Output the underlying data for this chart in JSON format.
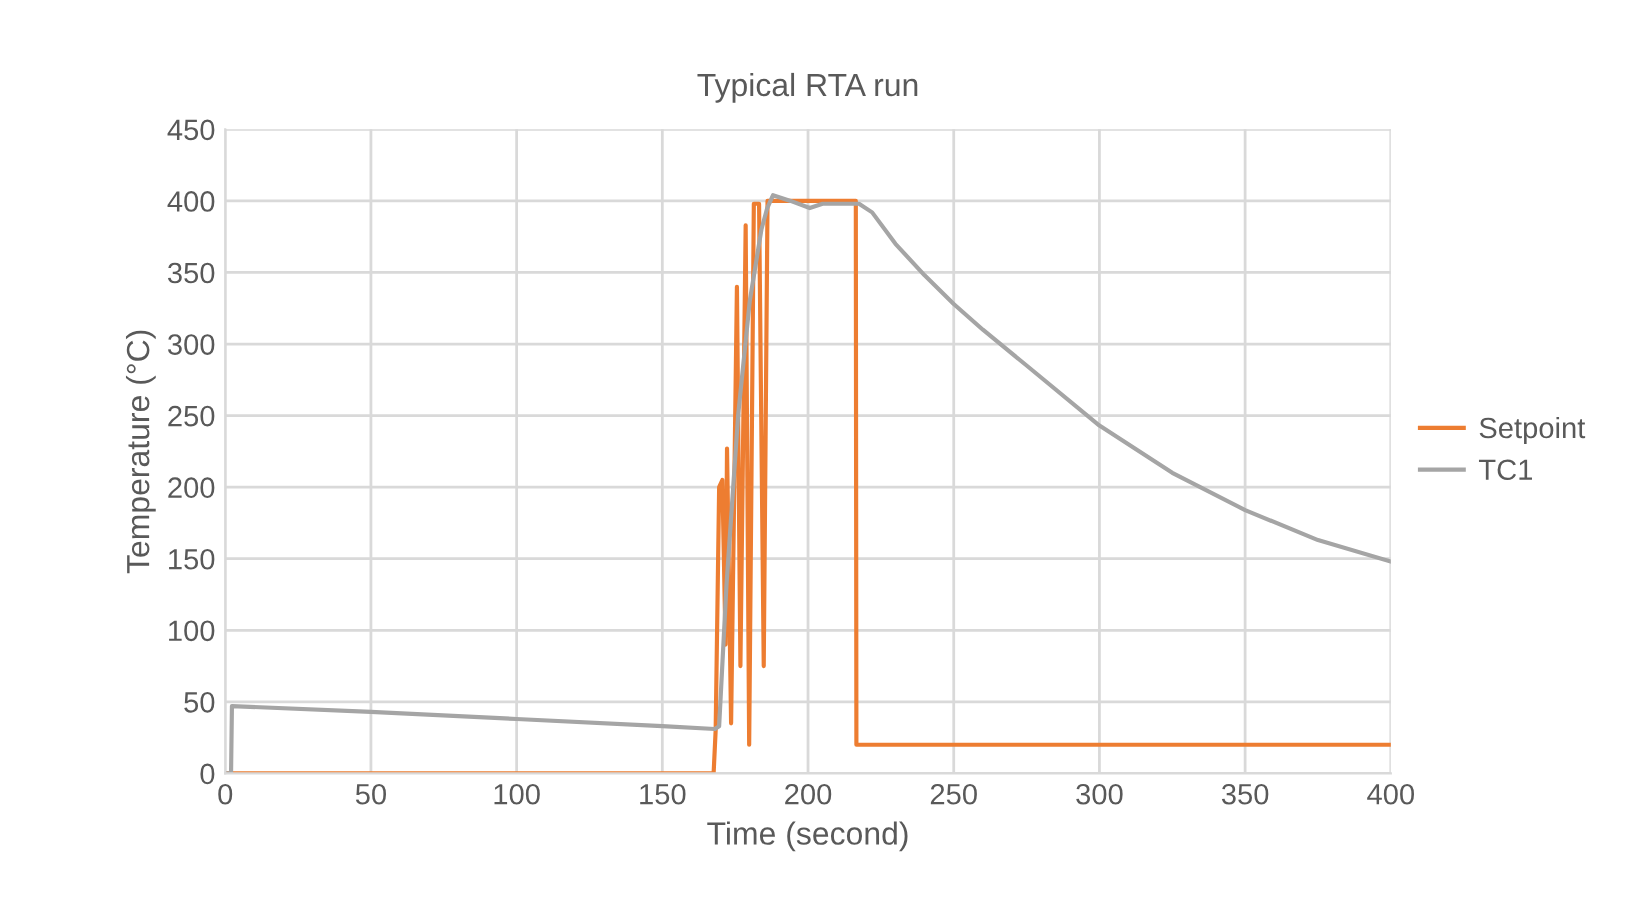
{
  "chart_data": {
    "type": "line",
    "title": "Typical RTA run",
    "xlabel": "Time (second)",
    "ylabel": "Temperature (°C)",
    "xlim": [
      0,
      400
    ],
    "xticks": [
      0,
      50,
      100,
      150,
      200,
      250,
      300,
      350,
      400
    ],
    "ylim": [
      0,
      450
    ],
    "yticks": [
      0,
      50,
      100,
      150,
      200,
      250,
      300,
      350,
      400,
      450
    ],
    "grid": true,
    "legend": "right",
    "marker": "none",
    "line_style": "solid",
    "series": [
      {
        "name": "Setpoint",
        "color": "#ed7d31",
        "x": [
          0,
          167.6,
          168.3,
          169.5,
          170.6,
          171.7,
          172.2,
          173.6,
          175.6,
          176.8,
          178.6,
          179.8,
          181.4,
          183.2,
          184.8,
          186.1,
          216.4,
          216.6,
          400
        ],
        "values": [
          0,
          0,
          30,
          200,
          205,
          90,
          227,
          35,
          340,
          75,
          383,
          20,
          398,
          398,
          75,
          400,
          400,
          20,
          20
        ]
      },
      {
        "name": "TC1",
        "color": "#a5a5a5",
        "x": [
          0,
          2,
          2.3,
          50,
          100,
          150,
          168,
          169.5,
          172,
          176,
          180,
          184,
          186,
          188,
          194,
          200.6,
          205,
          217.5,
          222,
          230,
          240,
          250,
          260,
          275,
          300,
          325,
          350,
          375,
          400
        ],
        "values": [
          0,
          0,
          47,
          43,
          38,
          33,
          31,
          33,
          131,
          250,
          330,
          380,
          395,
          404,
          400,
          395,
          398,
          398,
          392,
          370,
          348,
          328,
          310,
          285,
          243,
          210,
          184,
          163,
          148
        ]
      }
    ]
  }
}
